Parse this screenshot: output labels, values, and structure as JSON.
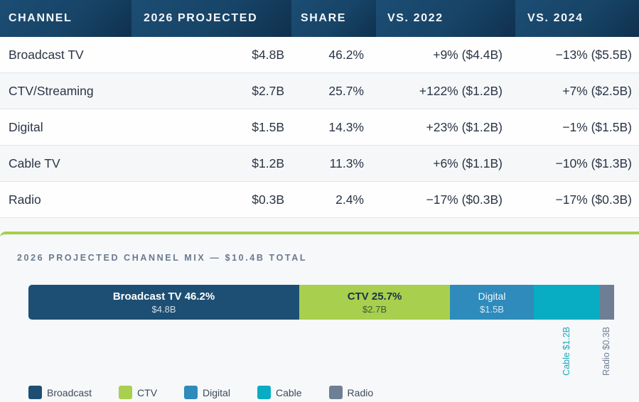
{
  "table": {
    "headers": [
      "CHANNEL",
      "2026 PROJECTED",
      "SHARE",
      "VS. 2022",
      "VS. 2024"
    ],
    "rows": [
      {
        "channel": "Broadcast TV",
        "projected": "$4.8B",
        "share": "46.2%",
        "vs2022": "+9% ($4.4B)",
        "vs2024": "−13% ($5.5B)"
      },
      {
        "channel": "CTV/Streaming",
        "projected": "$2.7B",
        "share": "25.7%",
        "vs2022": "+122% ($1.2B)",
        "vs2024": "+7% ($2.5B)"
      },
      {
        "channel": "Digital",
        "projected": "$1.5B",
        "share": "14.3%",
        "vs2022": "+23% ($1.2B)",
        "vs2024": "−1% ($1.5B)"
      },
      {
        "channel": "Cable TV",
        "projected": "$1.2B",
        "share": "11.3%",
        "vs2022": "+6% ($1.1B)",
        "vs2024": "−10% ($1.3B)"
      },
      {
        "channel": "Radio",
        "projected": "$0.3B",
        "share": "2.4%",
        "vs2022": "−17% ($0.3B)",
        "vs2024": "−17% ($0.3B)"
      }
    ]
  },
  "chart_data": {
    "type": "bar",
    "orientation": "horizontal-stacked-100",
    "title": "2026 PROJECTED CHANNEL MIX — $10.4B TOTAL",
    "total": "$10.4B",
    "unit": "percent share",
    "categories": [
      "Broadcast",
      "CTV",
      "Digital",
      "Cable",
      "Radio"
    ],
    "values": [
      46.2,
      25.7,
      14.3,
      11.3,
      2.4
    ],
    "segments": [
      {
        "key": "broadcast",
        "label": "Broadcast TV 46.2%",
        "value_label": "$4.8B",
        "share": 46.2,
        "color": "#1c4f73",
        "label_mode": "inside"
      },
      {
        "key": "ctv",
        "label": "CTV 25.7%",
        "value_label": "$2.7B",
        "share": 25.7,
        "color": "#a8cf4d",
        "label_mode": "inside"
      },
      {
        "key": "digital",
        "label": "Digital",
        "value_label": "$1.5B",
        "share": 14.3,
        "color": "#2e8bbb",
        "label_mode": "inside"
      },
      {
        "key": "cable",
        "label": "Cable $1.2B",
        "value_label": "",
        "share": 11.3,
        "color": "#08adc3",
        "label_mode": "below-vertical",
        "text_color": "#16a9bd"
      },
      {
        "key": "radio",
        "label": "Radio $0.3B",
        "value_label": "",
        "share": 2.4,
        "color": "#6e7f95",
        "label_mode": "below-vertical",
        "text_color": "#6e7f95"
      }
    ],
    "legend": {
      "position": "bottom-left",
      "items": [
        {
          "label": "Broadcast",
          "color": "#1c4f73"
        },
        {
          "label": "CTV",
          "color": "#a8cf4d"
        },
        {
          "label": "Digital",
          "color": "#2e8bbb"
        },
        {
          "label": "Cable",
          "color": "#08adc3"
        },
        {
          "label": "Radio",
          "color": "#6e7f95"
        }
      ]
    }
  }
}
